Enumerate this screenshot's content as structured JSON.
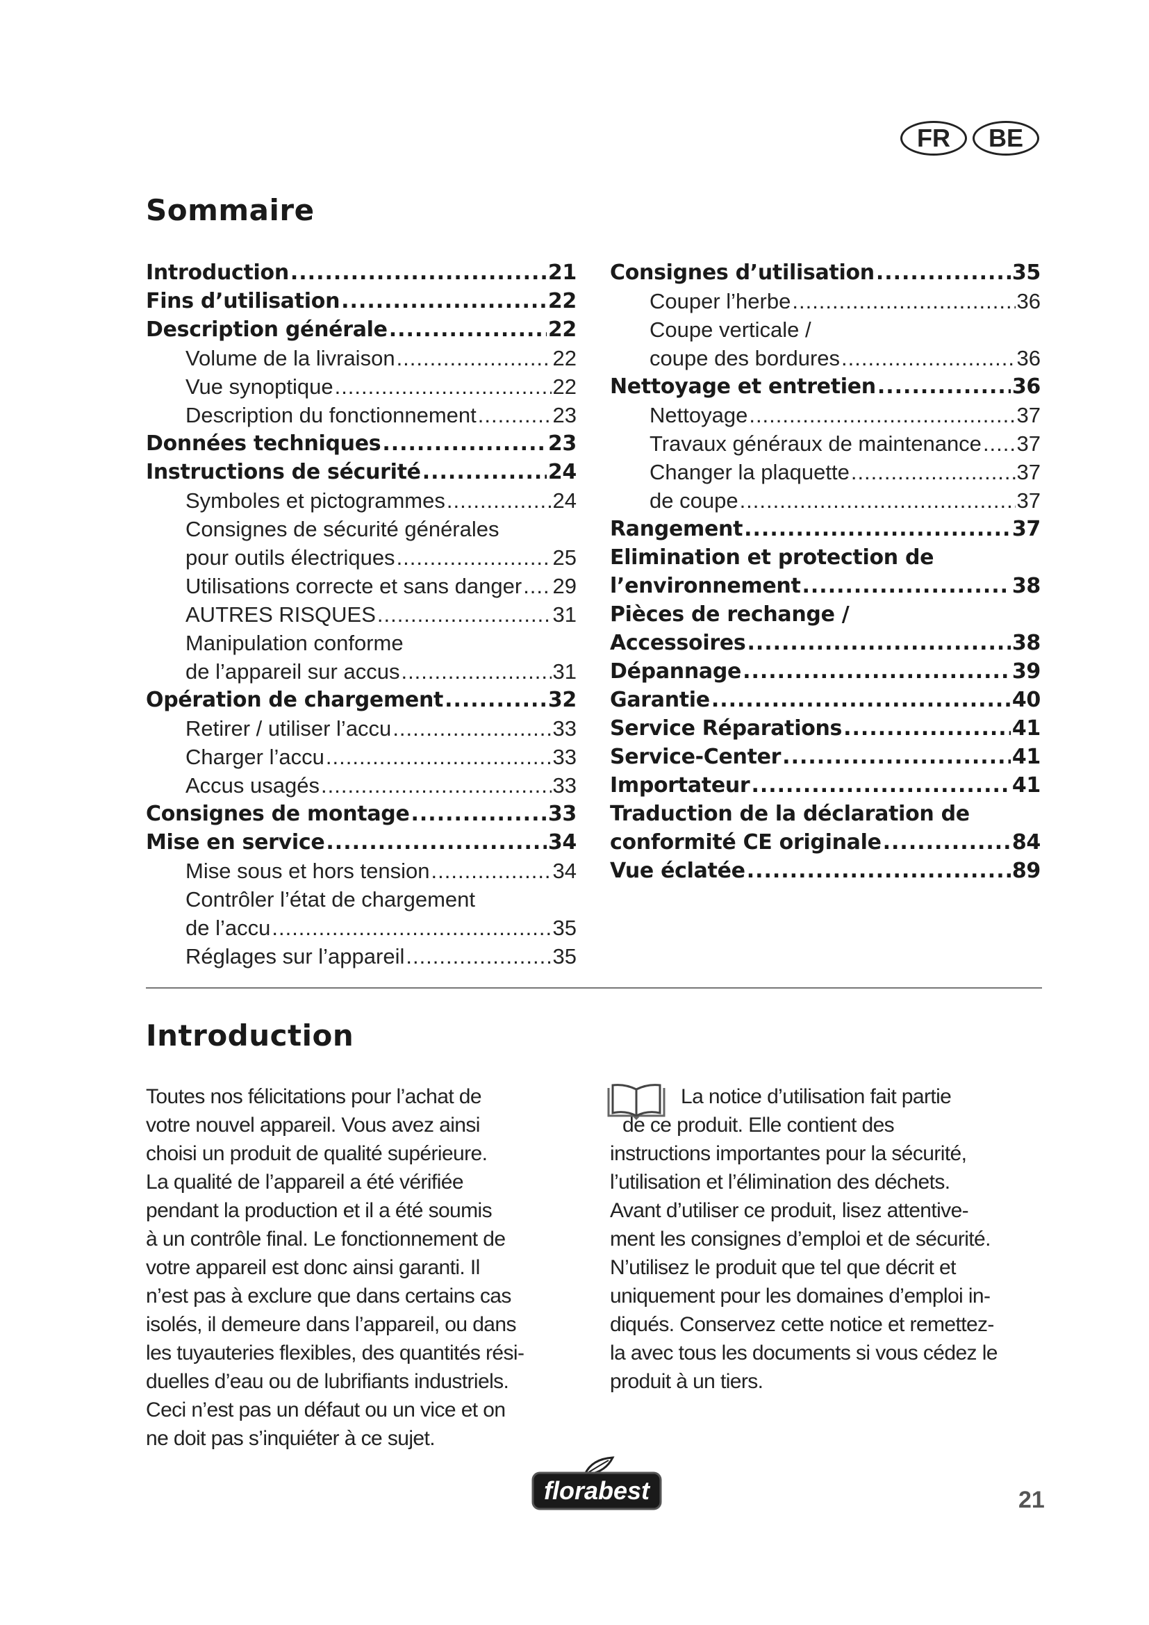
{
  "badges": [
    "FR",
    "BE"
  ],
  "toc": {
    "title": "Sommaire",
    "left": [
      {
        "text": "Introduction",
        "page": "21",
        "level": 1
      },
      {
        "text": "Fins d’utilisation",
        "page": "22",
        "level": 1
      },
      {
        "text": "Description générale",
        "page": "22",
        "level": 1
      },
      {
        "text": "Volume de la livraison",
        "page": "22",
        "level": 2
      },
      {
        "text": "Vue synoptique",
        "page": "22",
        "level": 2
      },
      {
        "text": "Description du fonctionnement",
        "page": "23",
        "level": 2
      },
      {
        "text": "Données techniques",
        "page": "23",
        "level": 1
      },
      {
        "text": "Instructions de sécurité",
        "page": "24",
        "level": 1
      },
      {
        "text": "Symboles et pictogrammes",
        "page": "24",
        "level": 2
      },
      {
        "text": "Consignes de sécurité générales",
        "page": "",
        "level": 2
      },
      {
        "text": "pour outils électriques",
        "page": "25",
        "level": 2
      },
      {
        "text": "Utilisations correcte et sans danger",
        "page": "29",
        "level": 2
      },
      {
        "text": "AUTRES RISQUES",
        "page": "31",
        "level": 2
      },
      {
        "text": "Manipulation conforme",
        "page": "",
        "level": 2
      },
      {
        "text": "de l’appareil sur accus",
        "page": "31",
        "level": 2
      },
      {
        "text": "Opération de chargement",
        "page": "32",
        "level": 1
      },
      {
        "text": "Retirer / utiliser l’accu",
        "page": "33",
        "level": 2
      },
      {
        "text": "Charger l’accu",
        "page": "33",
        "level": 2
      },
      {
        "text": "Accus usagés",
        "page": "33",
        "level": 2
      },
      {
        "text": "Consignes de montage",
        "page": "33",
        "level": 1
      },
      {
        "text": "Mise en service",
        "page": "34",
        "level": 1
      },
      {
        "text": "Mise sous et hors tension",
        "page": "34",
        "level": 2
      },
      {
        "text": "Contrôler l’état de chargement",
        "page": "",
        "level": 2
      },
      {
        "text": "de l’accu",
        "page": "35",
        "level": 2
      },
      {
        "text": "Réglages sur l’appareil",
        "page": "35",
        "level": 2
      }
    ],
    "right": [
      {
        "text": "Consignes d’utilisation",
        "page": "35",
        "level": 1
      },
      {
        "text": "Couper l’herbe",
        "page": "36",
        "level": 2
      },
      {
        "text": "Coupe verticale /",
        "page": "",
        "level": 2
      },
      {
        "text": "coupe des bordures",
        "page": "36",
        "level": 2
      },
      {
        "text": "Nettoyage et entretien",
        "page": "36",
        "level": 1
      },
      {
        "text": "Nettoyage",
        "page": "37",
        "level": 2
      },
      {
        "text": "Travaux généraux de maintenance",
        "page": "37",
        "level": 2
      },
      {
        "text": "Changer la plaquette",
        "page": "37",
        "level": 2
      },
      {
        "text": "de coupe",
        "page": "37",
        "level": 2
      },
      {
        "text": "Rangement",
        "page": "37",
        "level": 1
      },
      {
        "text": "Elimination et protection de",
        "page": "",
        "level": 1
      },
      {
        "text": "l’environnement",
        "page": "38",
        "level": 1
      },
      {
        "text": "Pièces de rechange /",
        "page": "",
        "level": 1
      },
      {
        "text": "Accessoires",
        "page": "38",
        "level": 1
      },
      {
        "text": "Dépannage",
        "page": "39",
        "level": 1
      },
      {
        "text": "Garantie",
        "page": "40",
        "level": 1
      },
      {
        "text": "Service Réparations",
        "page": "41",
        "level": 1
      },
      {
        "text": "Service-Center",
        "page": "41",
        "level": 1
      },
      {
        "text": "Importateur",
        "page": "41",
        "level": 1
      },
      {
        "text": "Traduction de la déclaration de",
        "page": "",
        "level": 1
      },
      {
        "text": "conformité CE originale",
        "page": "84",
        "level": 1
      },
      {
        "text": "Vue éclatée",
        "page": "89",
        "level": 1
      }
    ]
  },
  "introduction": {
    "title": "Introduction",
    "left_lines": [
      "Toutes nos félicitations pour l’achat de",
      "votre nouvel appareil. Vous avez ainsi",
      "choisi un produit de qualité supérieure.",
      "La qualité de l’appareil a été vérifiée",
      "pendant la production et il a été soumis",
      "à un contrôle final. Le fonctionnement de",
      "votre appareil est donc ainsi garanti. Il",
      "n’est pas à exclure que dans certains cas",
      "isolés, il demeure dans l’appareil, ou dans",
      "les tuyauteries flexibles, des quantités rési-",
      "duelles d’eau ou de lubrifiants industriels.",
      "Ceci n’est pas un défaut ou un vice et on",
      "ne doit pas s’inquiéter à ce sujet."
    ],
    "right_lines": [
      "La notice d’utilisation fait partie",
      "de ce produit. Elle contient des",
      "instructions importantes pour la sécurité,",
      "l’utilisation et l’élimination des déchets.",
      "Avant d’utiliser ce produit, lisez attentive-",
      "ment les consignes d’emploi et de sécurité.",
      "N’utilisez le produit que tel que décrit et",
      "uniquement pour les domaines d’emploi in-",
      "diqués. Conservez cette notice et remettez-",
      "la avec tous les documents si vous cédez le",
      "produit à un tiers."
    ],
    "note_icon": "book-icon"
  },
  "footer": {
    "brand": "florabest",
    "page_number": "21"
  }
}
